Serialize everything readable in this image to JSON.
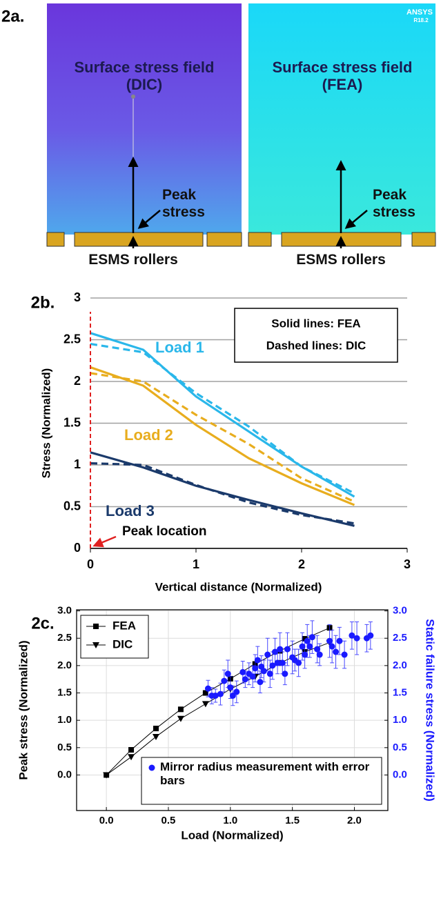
{
  "figure_a": {
    "panel": "2a.",
    "images": [
      {
        "title": "Surface stress field (DIC)",
        "peak_label": "Peak stress",
        "rollers_label": "ESMS rollers"
      },
      {
        "title": "Surface stress field (FEA)",
        "peak_label": "Peak stress",
        "rollers_label": "ESMS rollers",
        "logo": "ANSYS",
        "version": "R18.2"
      }
    ]
  },
  "chart_data": [
    {
      "type": "line",
      "panel": "2b.",
      "x_label": "Vertical distance (Normalized)",
      "y_label": "Stress (Normalized)",
      "note": [
        "Solid lines: FEA",
        "Dashed lines: DIC"
      ],
      "peak_marker": {
        "label": "Peak location",
        "x": 0,
        "color": "#e02020"
      },
      "x": [
        0,
        0.5,
        1,
        1.5,
        2,
        2.5
      ],
      "series": [
        {
          "name": "Load 1",
          "color": "#2ab7ea",
          "line_style": "solid",
          "values": [
            2.58,
            2.38,
            1.82,
            1.4,
            0.98,
            0.62
          ]
        },
        {
          "color": "#2ab7ea",
          "line_style": "dashed",
          "values": [
            2.45,
            2.35,
            1.86,
            1.46,
            0.98,
            0.66
          ]
        },
        {
          "name": "Load 2",
          "color": "#e8ad1e",
          "line_style": "solid",
          "values": [
            2.17,
            1.95,
            1.48,
            1.08,
            0.78,
            0.52
          ]
        },
        {
          "color": "#e8ad1e",
          "line_style": "dashed",
          "values": [
            2.1,
            2.0,
            1.6,
            1.25,
            0.84,
            0.56
          ]
        },
        {
          "name": "Load 3",
          "color": "#1b3a6b",
          "line_style": "solid",
          "values": [
            1.15,
            0.97,
            0.75,
            0.58,
            0.42,
            0.27
          ]
        },
        {
          "color": "#1b3a6b",
          "line_style": "dashed",
          "values": [
            1.02,
            1.0,
            0.76,
            0.55,
            0.4,
            0.3
          ]
        }
      ],
      "xlim": [
        0,
        3
      ],
      "ylim": [
        0,
        3
      ],
      "xticks": [
        0,
        1,
        2,
        3
      ],
      "yticks": [
        0,
        0.5,
        1,
        1.5,
        2,
        2.5,
        3
      ],
      "grid": true
    },
    {
      "type": "scatter",
      "panel": "2c.",
      "x_label": "Load (Normalized)",
      "y_label": "Peak stress (Normalized)",
      "y2_label": "Static failure stress (Normalized)",
      "series": [
        {
          "name": "FEA",
          "color": "#000000",
          "marker": "square",
          "line": true,
          "legend": "upper left",
          "x": [
            0,
            0.2,
            0.4,
            0.6,
            0.8,
            1.0,
            1.2,
            1.4,
            1.6,
            1.8
          ],
          "values": [
            0,
            0.46,
            0.85,
            1.2,
            1.5,
            1.76,
            2.03,
            2.27,
            2.49,
            2.69
          ]
        },
        {
          "name": "DIC",
          "color": "#000000",
          "marker": "triangle-down",
          "line": true,
          "legend": "upper left",
          "x": [
            0,
            0.2,
            0.4,
            0.6,
            0.8,
            1.0,
            1.2,
            1.4,
            1.6,
            1.8
          ],
          "values": [
            0,
            0.33,
            0.7,
            1.03,
            1.3,
            1.57,
            1.8,
            2.05,
            2.25,
            2.42
          ]
        },
        {
          "name": "Mirror radius measurement with error bars",
          "color": "#1a1aff",
          "marker": "circle",
          "line": false,
          "legend": "lower center",
          "axis": "y2",
          "x": [
            0.82,
            0.85,
            0.88,
            0.92,
            0.95,
            0.98,
            1.0,
            1.02,
            1.05,
            1.1,
            1.12,
            1.15,
            1.18,
            1.2,
            1.22,
            1.24,
            1.25,
            1.27,
            1.3,
            1.32,
            1.34,
            1.36,
            1.38,
            1.4,
            1.42,
            1.44,
            1.46,
            1.5,
            1.52,
            1.55,
            1.58,
            1.6,
            1.62,
            1.64,
            1.66,
            1.7,
            1.72,
            1.8,
            1.82,
            1.85,
            1.88,
            1.92,
            1.98,
            2.02,
            2.1,
            2.13
          ],
          "values": [
            1.58,
            1.45,
            1.45,
            1.48,
            1.72,
            1.85,
            1.6,
            1.45,
            1.52,
            1.88,
            1.75,
            1.85,
            1.8,
            1.95,
            2.1,
            1.7,
            1.98,
            1.9,
            2.2,
            1.85,
            2.0,
            2.25,
            2.05,
            2.3,
            2.05,
            1.85,
            2.3,
            2.15,
            2.1,
            2.05,
            2.35,
            2.2,
            2.45,
            2.35,
            2.52,
            2.3,
            2.2,
            2.45,
            2.35,
            2.25,
            2.45,
            2.2,
            2.55,
            2.5,
            2.5,
            2.55
          ],
          "errors": [
            0.15,
            0.15,
            0.12,
            0.2,
            0.2,
            0.25,
            0.2,
            0.18,
            0.2,
            0.2,
            0.15,
            0.2,
            0.2,
            0.25,
            0.25,
            0.2,
            0.2,
            0.2,
            0.3,
            0.25,
            0.25,
            0.25,
            0.2,
            0.3,
            0.2,
            0.2,
            0.3,
            0.3,
            0.2,
            0.25,
            0.25,
            0.25,
            0.3,
            0.2,
            0.3,
            0.25,
            0.2,
            0.3,
            0.3,
            0.3,
            0.25,
            0.25,
            0.25,
            0.3,
            0.25,
            0.25
          ]
        }
      ],
      "xlim": [
        -0.24,
        2.27
      ],
      "ylim": [
        -0.65,
        3.02
      ],
      "y2lim": [
        -0.65,
        3.02
      ],
      "xticks": [
        {
          "value": 0,
          "label": "0.0"
        },
        0.5,
        {
          "value": 1,
          "label": "1.0"
        },
        1.5,
        {
          "value": 2,
          "label": "2.0"
        }
      ],
      "yticks": [
        {
          "value": 0,
          "label": "0.0"
        },
        0.5,
        {
          "value": 1,
          "label": "1.0"
        },
        1.5,
        {
          "value": 2,
          "label": "2.0"
        },
        2.5,
        {
          "value": 3,
          "label": "3.0"
        }
      ],
      "y2ticks": [
        {
          "value": 0,
          "label": "0.0"
        },
        0.5,
        {
          "value": 1,
          "label": "1.0"
        },
        1.5,
        {
          "value": 2,
          "label": "2.0"
        },
        2.5,
        {
          "value": 3,
          "label": "3.0"
        }
      ],
      "y2_color": "#1a1aff",
      "grid": true
    }
  ]
}
